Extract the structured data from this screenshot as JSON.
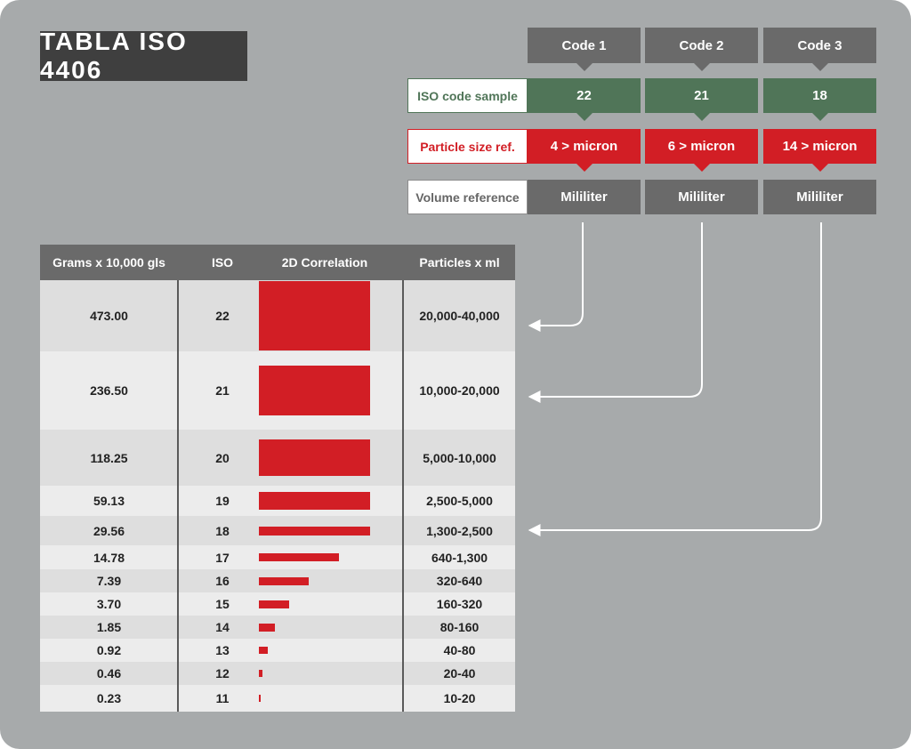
{
  "title": "TABLA ISO 4406",
  "codes": [
    {
      "tab": "Code 1",
      "iso": "22",
      "particle": "4 > micron",
      "volume": "Mililiter"
    },
    {
      "tab": "Code 2",
      "iso": "21",
      "particle": "6 > micron",
      "volume": "Mililiter"
    },
    {
      "tab": "Code 3",
      "iso": "18",
      "particle": "14 > micron",
      "volume": "Mililiter"
    }
  ],
  "row_labels": {
    "iso_code": "ISO code sample",
    "particle_size": "Particle size ref.",
    "volume": "Volume reference"
  },
  "colors": {
    "background": "#a7aaab",
    "dark": "#3f3f3f",
    "grey": "#6a6a6a",
    "green": "#507558",
    "red": "#d21e25"
  },
  "table": {
    "headers": [
      "Grams x 10,000 gls",
      "ISO",
      "2D Correlation",
      "Particles x ml"
    ],
    "rows": [
      {
        "grams": "473.00",
        "iso": "22",
        "correlation": 1.0,
        "particles": "20,000-40,000"
      },
      {
        "grams": "236.50",
        "iso": "21",
        "correlation": 1.0,
        "particles": "10,000-20,000"
      },
      {
        "grams": "118.25",
        "iso": "20",
        "correlation": 1.0,
        "particles": "5,000-10,000"
      },
      {
        "grams": "59.13",
        "iso": "19",
        "correlation": 1.0,
        "particles": "2,500-5,000"
      },
      {
        "grams": "29.56",
        "iso": "18",
        "correlation": 1.0,
        "particles": "1,300-2,500"
      },
      {
        "grams": "14.78",
        "iso": "17",
        "correlation": 0.72,
        "particles": "640-1,300"
      },
      {
        "grams": "7.39",
        "iso": "16",
        "correlation": 0.45,
        "particles": "320-640"
      },
      {
        "grams": "3.70",
        "iso": "15",
        "correlation": 0.27,
        "particles": "160-320"
      },
      {
        "grams": "1.85",
        "iso": "14",
        "correlation": 0.14,
        "particles": "80-160"
      },
      {
        "grams": "0.92",
        "iso": "13",
        "correlation": 0.08,
        "particles": "40-80"
      },
      {
        "grams": "0.46",
        "iso": "12",
        "correlation": 0.03,
        "particles": "20-40"
      },
      {
        "grams": "0.23",
        "iso": "11",
        "correlation": 0.01,
        "particles": "10-20"
      }
    ]
  },
  "links": [
    {
      "code": "Code 1",
      "iso": "22"
    },
    {
      "code": "Code 2",
      "iso": "21"
    },
    {
      "code": "Code 3",
      "iso": "18"
    }
  ]
}
